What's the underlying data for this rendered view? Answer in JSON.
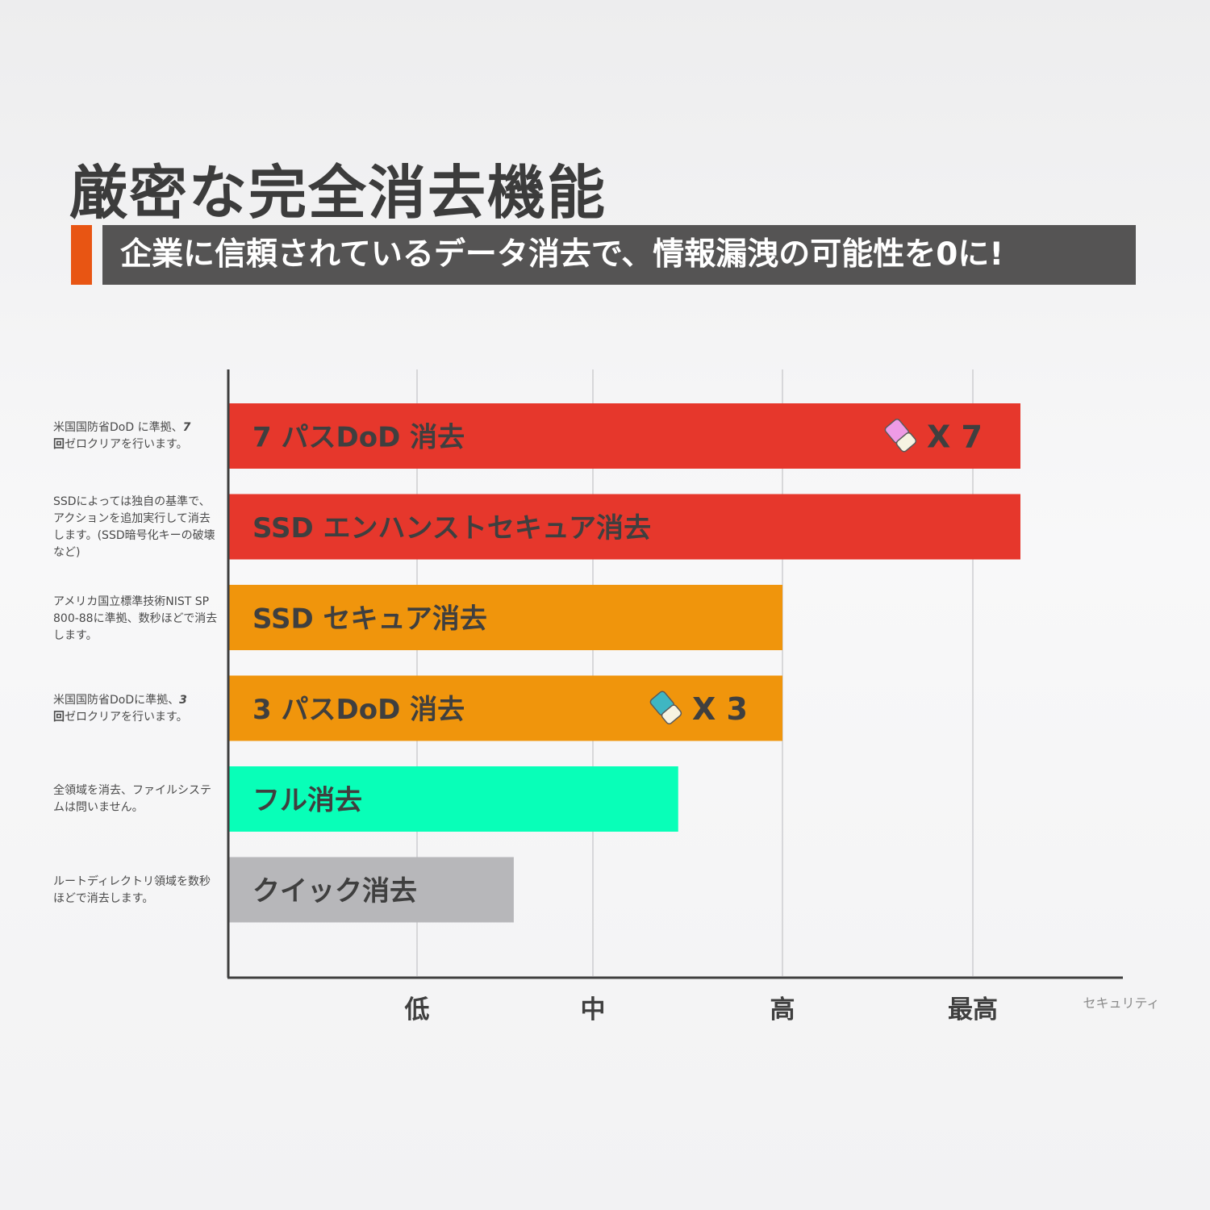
{
  "header": {
    "title": "厳密な完全消去機能",
    "subtitle": "企業に信頼されているデータ消去で、情報漏洩の可能性を0に!"
  },
  "colors": {
    "accent": "#e85513",
    "subtitle_bg": "#555454",
    "red": "#e6372c",
    "orange": "#f0950c",
    "green": "#08ffb8",
    "gray": "#b7b7ba"
  },
  "chart_data": {
    "type": "bar",
    "orientation": "horizontal",
    "x_categories": [
      "低",
      "中",
      "高",
      "最高"
    ],
    "xlabel": "セキュリティ",
    "grid": true,
    "bars": [
      {
        "label": "7 パスDoD 消去",
        "value": 4.25,
        "color": "#e6372c",
        "badge": "X 7",
        "badge_icon": "eraser-pink-icon",
        "description": [
          "米国国防省DoD に準拠、",
          "7",
          "回",
          "ゼロクリアを行います。"
        ]
      },
      {
        "label": "SSD エンハンストセキュア消去",
        "value": 4.25,
        "color": "#e6372c",
        "description": [
          "SSDによっては独自の基準で、アクションを追加実行して消去します。(SSD暗号化キーの破壊など)"
        ]
      },
      {
        "label": "SSD セキュア消去",
        "value": 3.0,
        "color": "#f0950c",
        "description": [
          "アメリカ国立標準技術NIST SP 800-88に準拠、数秒ほどで消去します。"
        ]
      },
      {
        "label": "3 パスDoD 消去",
        "value": 3.0,
        "color": "#f0950c",
        "badge": "X 3",
        "badge_icon": "eraser-teal-icon",
        "description": [
          "米国国防省DoDに準拠、",
          "3",
          "回",
          "ゼロクリアを行います。"
        ]
      },
      {
        "label": "フル消去",
        "value": 2.45,
        "color": "#08ffb8",
        "description": [
          "全領域を消去、ファイルシステムは問いません。"
        ]
      },
      {
        "label": "クイック消去",
        "value": 1.55,
        "color": "#b7b7ba",
        "description": [
          "ルートディレクトリ領域を数秒ほどで消去します。"
        ]
      }
    ]
  }
}
